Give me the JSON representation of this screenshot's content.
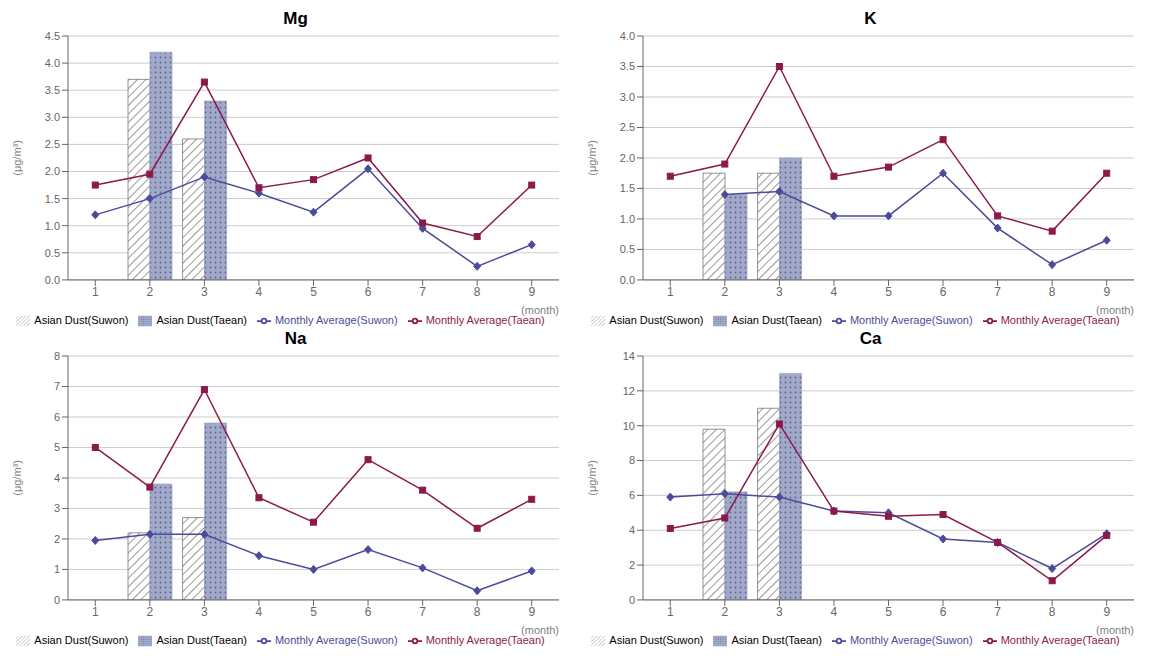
{
  "chart_data": [
    {
      "type": "bar",
      "title": "Mg",
      "x_label": "(month)",
      "y_label": "(μg/m³)",
      "categories": [
        "1",
        "2",
        "3",
        "4",
        "5",
        "6",
        "7",
        "8",
        "9"
      ],
      "series": [
        {
          "name": "Asian Dust(Suwon)",
          "type": "bar",
          "color": "#777777",
          "values": [
            null,
            3.7,
            2.6,
            null,
            null,
            null,
            null,
            null,
            null
          ]
        },
        {
          "name": "Asian Dust(Taean)",
          "type": "bar",
          "color": "#a0a8cc",
          "values": [
            null,
            4.2,
            3.3,
            null,
            null,
            null,
            null,
            null,
            null
          ]
        },
        {
          "name": "Monthly Average(Suwon)",
          "type": "line",
          "color": "#4B4B9B",
          "marker": "diamond",
          "values": [
            1.2,
            1.5,
            1.9,
            1.6,
            1.25,
            2.05,
            0.95,
            0.25,
            0.65
          ]
        },
        {
          "name": "Monthly Average(Taean)",
          "type": "line",
          "color": "#8B1A4A",
          "marker": "square",
          "values": [
            1.75,
            1.95,
            3.65,
            1.7,
            1.85,
            2.25,
            1.05,
            0.8,
            1.75
          ]
        }
      ],
      "ylim": [
        0,
        4.5
      ],
      "yticks": [
        {
          "value": 0,
          "label": "0.0"
        },
        0.5,
        {
          "value": 1,
          "label": "1.0"
        },
        1.5,
        {
          "value": 2,
          "label": "2.0"
        },
        2.5,
        {
          "value": 3,
          "label": "3.0"
        },
        3.5,
        {
          "value": 4,
          "label": "4.0"
        },
        4.5
      ],
      "grid": true,
      "legend": "bottom"
    },
    {
      "type": "bar",
      "title": "K",
      "x_label": "(month)",
      "y_label": "(μg/m³)",
      "categories": [
        "1",
        "2",
        "3",
        "4",
        "5",
        "6",
        "7",
        "8",
        "9"
      ],
      "series": [
        {
          "name": "Asian Dust(Suwon)",
          "type": "bar",
          "color": "#777777",
          "values": [
            null,
            1.75,
            1.75,
            null,
            null,
            null,
            null,
            null,
            null
          ]
        },
        {
          "name": "Asian Dust(Taean)",
          "type": "bar",
          "color": "#a0a8cc",
          "values": [
            null,
            1.4,
            2.0,
            null,
            null,
            null,
            null,
            null,
            null
          ]
        },
        {
          "name": "Monthly Average(Suwon)",
          "type": "line",
          "color": "#4B4B9B",
          "marker": "diamond",
          "values": [
            null,
            1.4,
            1.45,
            1.05,
            1.05,
            1.75,
            0.85,
            0.25,
            0.65
          ]
        },
        {
          "name": "Monthly Average(Taean)",
          "type": "line",
          "color": "#8B1A4A",
          "marker": "square",
          "values": [
            1.7,
            1.9,
            3.5,
            1.7,
            1.85,
            2.3,
            1.05,
            0.8,
            1.75
          ]
        }
      ],
      "ylim": [
        0,
        4
      ],
      "yticks": [
        {
          "value": 0,
          "label": "0.0"
        },
        0.5,
        {
          "value": 1,
          "label": "1.0"
        },
        1.5,
        {
          "value": 2,
          "label": "2.0"
        },
        2.5,
        {
          "value": 3,
          "label": "3.0"
        },
        3.5,
        {
          "value": 4,
          "label": "4.0"
        }
      ],
      "grid": true,
      "legend": "bottom"
    },
    {
      "type": "bar",
      "title": "Na",
      "x_label": "(month)",
      "y_label": "(μg/m³)",
      "categories": [
        "1",
        "2",
        "3",
        "4",
        "5",
        "6",
        "7",
        "8",
        "9"
      ],
      "series": [
        {
          "name": "Asian Dust(Suwon)",
          "type": "bar",
          "color": "#777777",
          "values": [
            null,
            2.2,
            2.7,
            null,
            null,
            null,
            null,
            null,
            null
          ]
        },
        {
          "name": "Asian Dust(Taean)",
          "type": "bar",
          "color": "#a0a8cc",
          "values": [
            null,
            3.8,
            5.8,
            null,
            null,
            null,
            null,
            null,
            null
          ]
        },
        {
          "name": "Monthly Average(Suwon)",
          "type": "line",
          "color": "#4B4B9B",
          "marker": "diamond",
          "values": [
            1.95,
            2.15,
            2.15,
            1.45,
            1.0,
            1.65,
            1.05,
            0.3,
            0.95
          ]
        },
        {
          "name": "Monthly Average(Taean)",
          "type": "line",
          "color": "#8B1A4A",
          "marker": "square",
          "values": [
            5.0,
            3.7,
            6.9,
            3.35,
            2.55,
            4.6,
            3.6,
            2.35,
            3.3
          ]
        }
      ],
      "ylim": [
        0,
        8
      ],
      "yticks": [
        0,
        1,
        2,
        3,
        4,
        5,
        6,
        7,
        8
      ],
      "grid": true,
      "legend": "bottom"
    },
    {
      "type": "bar",
      "title": "Ca",
      "x_label": "(month)",
      "y_label": "(μg/m³)",
      "categories": [
        "1",
        "2",
        "3",
        "4",
        "5",
        "6",
        "7",
        "8",
        "9"
      ],
      "series": [
        {
          "name": "Asian Dust(Suwon)",
          "type": "bar",
          "color": "#777777",
          "values": [
            null,
            9.8,
            11.0,
            null,
            null,
            null,
            null,
            null,
            null
          ]
        },
        {
          "name": "Asian Dust(Taean)",
          "type": "bar",
          "color": "#a0a8cc",
          "values": [
            null,
            6.2,
            13.0,
            null,
            null,
            null,
            null,
            null,
            null
          ]
        },
        {
          "name": "Monthly Average(Suwon)",
          "type": "line",
          "color": "#4B4B9B",
          "marker": "diamond",
          "values": [
            5.9,
            6.1,
            5.9,
            5.1,
            5.0,
            3.5,
            3.3,
            1.8,
            3.8
          ]
        },
        {
          "name": "Monthly Average(Taean)",
          "type": "line",
          "color": "#8B1A4A",
          "marker": "square",
          "values": [
            4.1,
            4.7,
            10.1,
            5.1,
            4.8,
            4.9,
            3.3,
            1.1,
            3.7
          ]
        }
      ],
      "ylim": [
        0,
        14
      ],
      "yticks": [
        0,
        2,
        4,
        6,
        8,
        10,
        12,
        14
      ],
      "grid": true,
      "legend": "bottom"
    }
  ]
}
